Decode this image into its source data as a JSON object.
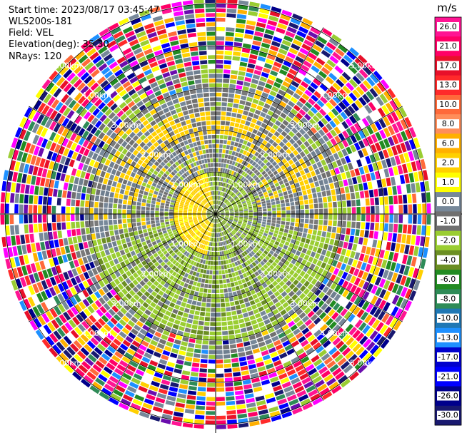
{
  "header": {
    "start_time": "Start time: 2023/08/17 03:45:47",
    "site": "WLS200s-181",
    "field": "Field: VEL",
    "elevation": "Elevation(deg): 35.30",
    "nrays": "NRays: 120"
  },
  "chart_data": {
    "type": "heatmap",
    "projection": "polar-ppi",
    "field": "VEL",
    "units": "m/s",
    "nrays": 120,
    "elevation_deg": 35.3,
    "range_rings_km": [
      1.0,
      2.0,
      3.0,
      4.0,
      5.0
    ],
    "range_ring_labels": [
      "1.00km",
      "2.00km",
      "3.00km",
      "4.00km",
      "5.00km"
    ],
    "colorbar": {
      "labels": [
        "26.0",
        "21.0",
        "17.0",
        "13.0",
        "10.0",
        "8.0",
        "6.0",
        "2.0",
        "1.0",
        "0.0",
        "-1.0",
        "-2.0",
        "-4.0",
        "-6.0",
        "-8.0",
        "-10.0",
        "-13.0",
        "-17.0",
        "-21.0",
        "-26.0",
        "-30.0"
      ],
      "colors": [
        "#ff1493",
        "#ff0066",
        "#e8102a",
        "#ff2a2a",
        "#ff6a3a",
        "#ff8e5a",
        "#ffb000",
        "#ffd000",
        "#ffff00",
        "#778899",
        "#707070",
        "#9acd32",
        "#6b8e23",
        "#228b22",
        "#2e8b57",
        "#1f77b4",
        "#1e90ff",
        "#0000cd",
        "#0000ff",
        "#00008b",
        "#191970"
      ]
    },
    "pattern": {
      "inner_near_zero_radius_km": 1.0,
      "yellow_positive_west_center": true,
      "green_negative_ring_km": [
        1.0,
        3.0
      ],
      "noise_beyond_km": 3.5
    }
  }
}
